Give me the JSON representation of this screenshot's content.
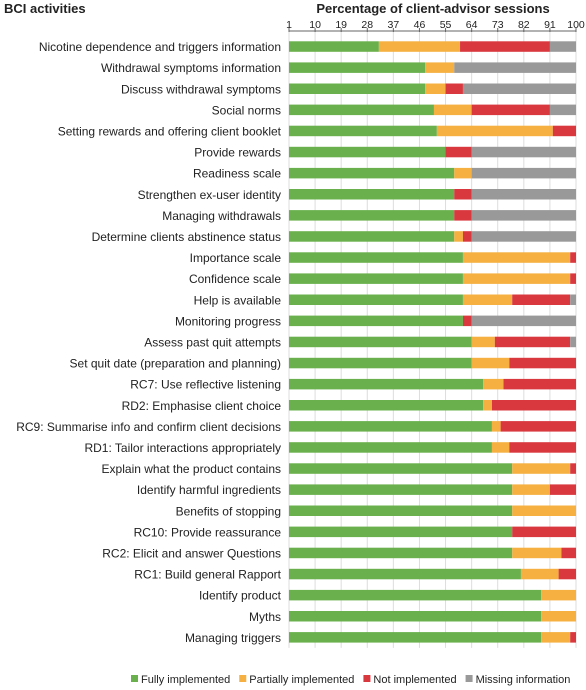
{
  "chart_data": {
    "type": "bar",
    "orientation": "horizontal",
    "stacked": true,
    "title_left": "BCI activities",
    "title_right": "Percentage of client-advisor sessions",
    "xlim": [
      1,
      100
    ],
    "x_ticks": [
      "1",
      "10",
      "19",
      "28",
      "37",
      "46",
      "55",
      "64",
      "73",
      "82",
      "91",
      "100"
    ],
    "grid": true,
    "legend_position": "bottom",
    "categories": [
      "Nicotine dependence and triggers information",
      "Withdrawal symptoms information",
      "Discuss withdrawal symptoms",
      "Social norms",
      "Setting rewards and offering client booklet",
      "Provide rewards",
      "Readiness scale",
      "Strengthen ex-user identity",
      "Managing withdrawals",
      "Determine clients abstinence status",
      "Importance scale",
      "Confidence scale",
      "Help is available",
      "Monitoring progress",
      "Assess past quit attempts",
      "Set quit date (preparation and planning)",
      "RC7: Use reflective listening",
      "RD2: Emphasise client choice",
      "RC9: Summarise info and confirm client decisions",
      "RD1: Tailor interactions appropriately",
      "Explain what the product contains",
      "Identify harmful ingredients",
      "Benefits of stopping",
      "RC10: Provide reassurance",
      "RC2: Elicit and answer Questions",
      "RC1: Build general Rapport",
      "Identify product",
      "Myths",
      "Managing triggers"
    ],
    "series": [
      {
        "name": "Fully implemented",
        "color": "#6ab04c",
        "values": [
          31,
          47,
          47,
          50,
          51,
          54,
          57,
          57,
          57,
          57,
          60,
          60,
          60,
          60,
          63,
          63,
          67,
          67,
          70,
          70,
          77,
          77,
          77,
          77,
          77,
          80,
          87,
          87,
          87
        ]
      },
      {
        "name": "Partially implemented",
        "color": "#f5b041",
        "values": [
          28,
          10,
          7,
          13,
          40,
          0,
          6,
          0,
          0,
          3,
          37,
          37,
          17,
          0,
          8,
          13,
          7,
          3,
          3,
          6,
          20,
          13,
          23,
          0,
          17,
          13,
          13,
          13,
          10
        ]
      },
      {
        "name": "Not implemented",
        "color": "#d9383f",
        "values": [
          31,
          0,
          6,
          27,
          9,
          9,
          0,
          6,
          6,
          3,
          3,
          3,
          20,
          3,
          26,
          24,
          26,
          30,
          27,
          24,
          3,
          10,
          0,
          23,
          6,
          7,
          0,
          0,
          3
        ]
      },
      {
        "name": "Missing information",
        "color": "#999999",
        "values": [
          10,
          43,
          40,
          10,
          0,
          37,
          37,
          37,
          37,
          37,
          0,
          0,
          3,
          37,
          3,
          0,
          0,
          0,
          0,
          0,
          0,
          0,
          0,
          0,
          0,
          0,
          0,
          0,
          0
        ]
      }
    ]
  }
}
